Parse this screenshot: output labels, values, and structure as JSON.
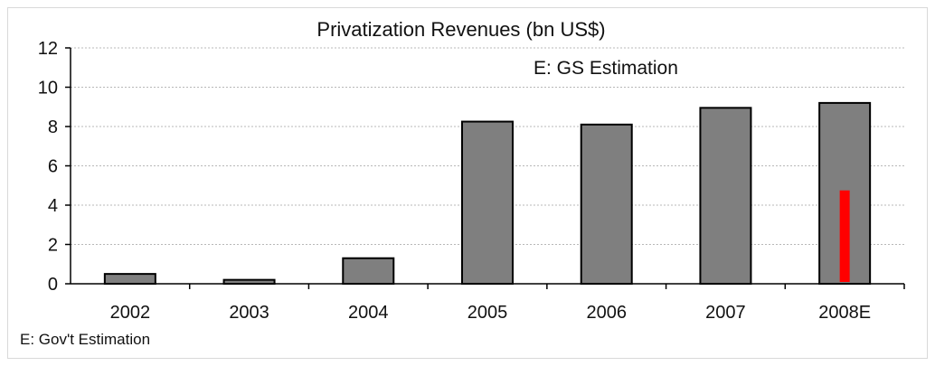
{
  "chart_data": {
    "type": "bar",
    "title": "Privatization Revenues (bn US$)",
    "categories": [
      "2002",
      "2003",
      "2004",
      "2005",
      "2006",
      "2007",
      "2008E"
    ],
    "series": [
      {
        "values": [
          0.5,
          0.2,
          1.3,
          8.25,
          8.1,
          8.95,
          9.2
        ]
      },
      {
        "values": [
          null,
          null,
          null,
          null,
          null,
          null,
          4.75
        ]
      }
    ],
    "ylim": [
      0,
      12
    ],
    "yticks": [
      0,
      2,
      4,
      6,
      8,
      10,
      12
    ],
    "ytick_labels": [
      "0",
      "2",
      "4",
      "6",
      "8",
      "10",
      "12"
    ],
    "grid": true,
    "colors": {
      "bar": "#7f7f7f",
      "estimate": "#ff0000",
      "grid": "#b8b8b8"
    },
    "annotations": [
      "E: GS Estimation"
    ],
    "footnote": "E: Gov't Estimation"
  }
}
